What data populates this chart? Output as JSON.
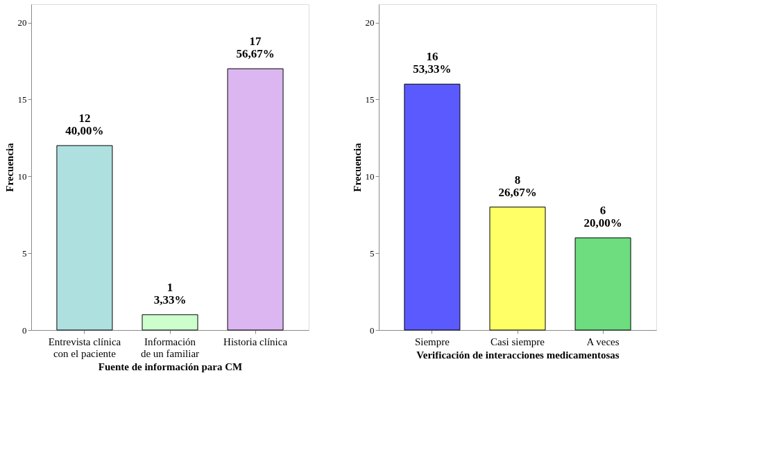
{
  "chart_data": [
    {
      "type": "bar",
      "xlabel": "Fuente de información para CM",
      "ylabel": "Frecuencia",
      "categories": [
        "Entrevista clínica\ncon el paciente",
        "Información\nde un familiar",
        "Historia clínica"
      ],
      "values": [
        12,
        1,
        17
      ],
      "colors": [
        "#aee0e0",
        "#ccffcc",
        "#dcb6f0"
      ],
      "value_labels": [
        "12\n40,00%",
        "1\n3,33%",
        "17\n56,67%"
      ],
      "ylim": [
        0,
        21.2
      ],
      "yticks": [
        0,
        5,
        10,
        15,
        20
      ],
      "grid": false
    },
    {
      "type": "bar",
      "xlabel": "Verificación de interacciones medicamentosas",
      "ylabel": "Frecuencia",
      "categories": [
        "Siempre",
        "Casi siempre",
        "A veces"
      ],
      "values": [
        16,
        8,
        6
      ],
      "colors": [
        "#5a5aff",
        "#ffff66",
        "#6ddd7f"
      ],
      "value_labels": [
        "16\n53,33%",
        "8\n26,67%",
        "6\n20,00%"
      ],
      "ylim": [
        0,
        21.2
      ],
      "yticks": [
        0,
        5,
        10,
        15,
        20
      ],
      "grid": false
    }
  ]
}
